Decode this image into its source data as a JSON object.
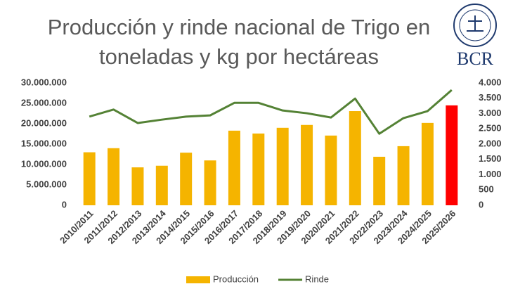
{
  "chart_data": {
    "type": "bar_line",
    "title": "Producción y rinde nacional de Trigo en toneladas y kg por hectáreas",
    "logo": "BCR",
    "categories": [
      "2010/2011",
      "2011/2012",
      "2012/2013",
      "2013/2014",
      "2014/2015",
      "2015/2016",
      "2016/2017",
      "2017/2018",
      "2018/2019",
      "2019/2020",
      "2020/2021",
      "2021/2022",
      "2022/2023",
      "2023/2024",
      "2024/2025",
      "2025/2026"
    ],
    "series": [
      {
        "name": "Producción",
        "type": "bar",
        "color": "#f5b400",
        "colors": [
          "#f5b400",
          "#f5b400",
          "#f5b400",
          "#f5b400",
          "#f5b400",
          "#f5b400",
          "#f5b400",
          "#f5b400",
          "#f5b400",
          "#f5b400",
          "#f5b400",
          "#f5b400",
          "#f5b400",
          "#f5b400",
          "#f5b400",
          "#ff0000"
        ],
        "values": [
          13000000,
          14000000,
          9300000,
          9700000,
          12900000,
          11000000,
          18300000,
          17600000,
          19000000,
          19700000,
          17100000,
          23100000,
          11900000,
          14500000,
          20200000,
          24500000
        ]
      },
      {
        "name": "Rinde",
        "type": "line",
        "axis": "y2",
        "color": "#548235",
        "values": [
          2900,
          3130,
          2690,
          2800,
          2900,
          2940,
          3350,
          3350,
          3100,
          3010,
          2870,
          3490,
          2340,
          2850,
          3080,
          3770
        ]
      }
    ],
    "ylim": [
      0,
      30000000
    ],
    "yticks": [
      0,
      {
        "value": 5000000,
        "label": "5.000.000"
      },
      {
        "value": 10000000,
        "label": "10.000.000"
      },
      {
        "value": 15000000,
        "label": "15.000.000"
      },
      {
        "value": 20000000,
        "label": "20.000.000"
      },
      {
        "value": 25000000,
        "label": "25.000.000"
      },
      {
        "value": 30000000,
        "label": "30.000.000"
      }
    ],
    "y2lim": [
      0,
      4000
    ],
    "y2ticks": [
      0,
      500,
      {
        "value": 1000,
        "label": "1.000"
      },
      {
        "value": 1500,
        "label": "1.500"
      },
      {
        "value": 2000,
        "label": "2.000"
      },
      {
        "value": 2500,
        "label": "2.500"
      },
      {
        "value": 3000,
        "label": "3.000"
      },
      {
        "value": 3500,
        "label": "3.500"
      },
      {
        "value": 4000,
        "label": "4.000"
      }
    ],
    "grid": false,
    "legend": "bottom"
  }
}
